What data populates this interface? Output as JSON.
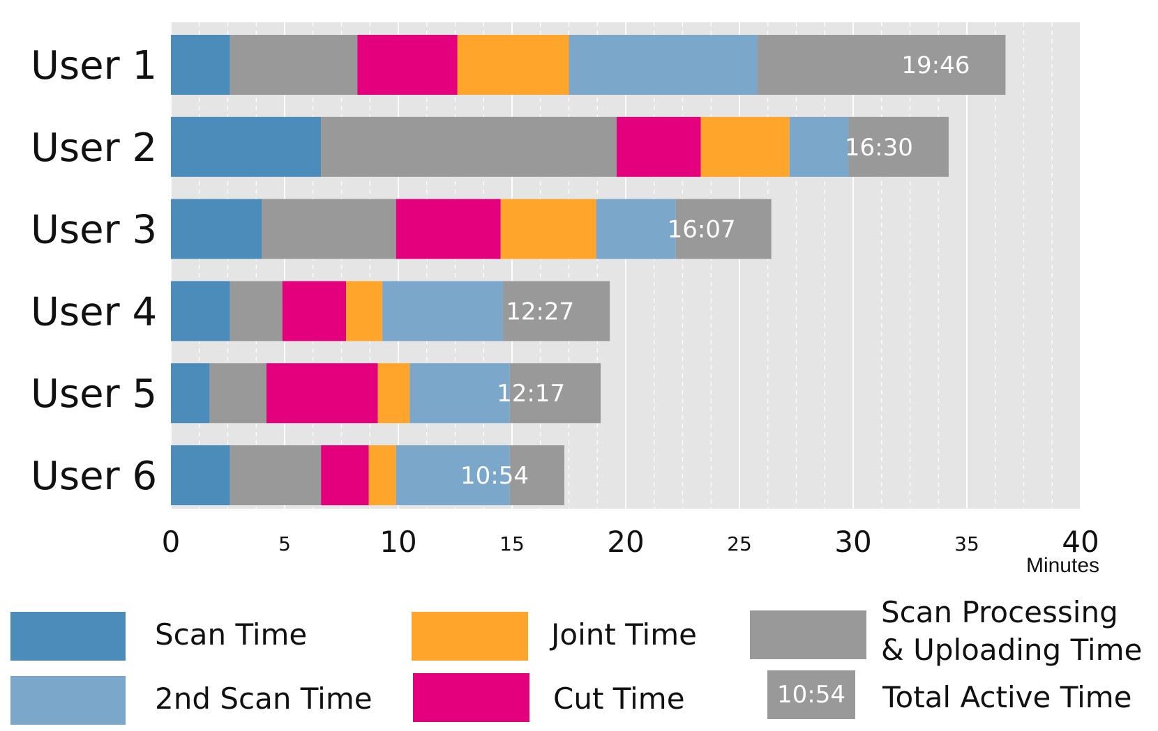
{
  "chart_data": {
    "type": "bar",
    "orientation": "horizontal",
    "stacked": true,
    "categories": [
      "User 1",
      "User 2",
      "User 3",
      "User 4",
      "User 5",
      "User 6"
    ],
    "segment_order": [
      "Scan Time",
      "Scan Processing & Uploading Time",
      "Cut Time",
      "Joint Time",
      "2nd Scan Time",
      "Scan Processing & Uploading Time"
    ],
    "rows": [
      {
        "label": "User 1",
        "segments": [
          2.6,
          5.6,
          4.4,
          4.9,
          8.3,
          10.9
        ],
        "total_active": "19:46"
      },
      {
        "label": "User 2",
        "segments": [
          6.6,
          13.0,
          3.7,
          3.9,
          2.6,
          4.4
        ],
        "total_active": "16:30"
      },
      {
        "label": "User 3",
        "segments": [
          4.0,
          5.9,
          4.6,
          4.2,
          3.5,
          4.2
        ],
        "total_active": "16:07"
      },
      {
        "label": "User 4",
        "segments": [
          2.6,
          2.3,
          2.8,
          1.6,
          5.3,
          4.7
        ],
        "total_active": "12:27"
      },
      {
        "label": "User 5",
        "segments": [
          1.7,
          2.5,
          4.9,
          1.4,
          4.4,
          4.0
        ],
        "total_active": "12:17"
      },
      {
        "label": "User 6",
        "segments": [
          2.6,
          4.0,
          2.1,
          1.2,
          5.0,
          2.4
        ],
        "total_active": "10:54"
      }
    ],
    "xlim": [
      0,
      40
    ],
    "x_ticks": [
      0,
      5,
      10,
      15,
      20,
      25,
      30,
      35,
      40
    ],
    "x_tick_labels": [
      "0",
      "5",
      "10",
      "15",
      "20",
      "25",
      "30",
      "35",
      "40"
    ],
    "xlabel": "Minutes",
    "grid": true,
    "legend_position": "bottom"
  },
  "colors": {
    "scan": "#4C8CBA",
    "second_scan": "#7BA8CA",
    "joint": "#FFA52B",
    "cut": "#E4007C",
    "processing": "#999999",
    "plot_bg": "#E5E5E5"
  },
  "legend": {
    "scan": "Scan Time",
    "second_scan": "2nd Scan Time",
    "joint": "Joint Time",
    "cut": "Cut Time",
    "processing_line1": "Scan Processing",
    "processing_line2": "& Uploading Time",
    "total_badge": "10:54",
    "total_label": "Total Active Time"
  }
}
